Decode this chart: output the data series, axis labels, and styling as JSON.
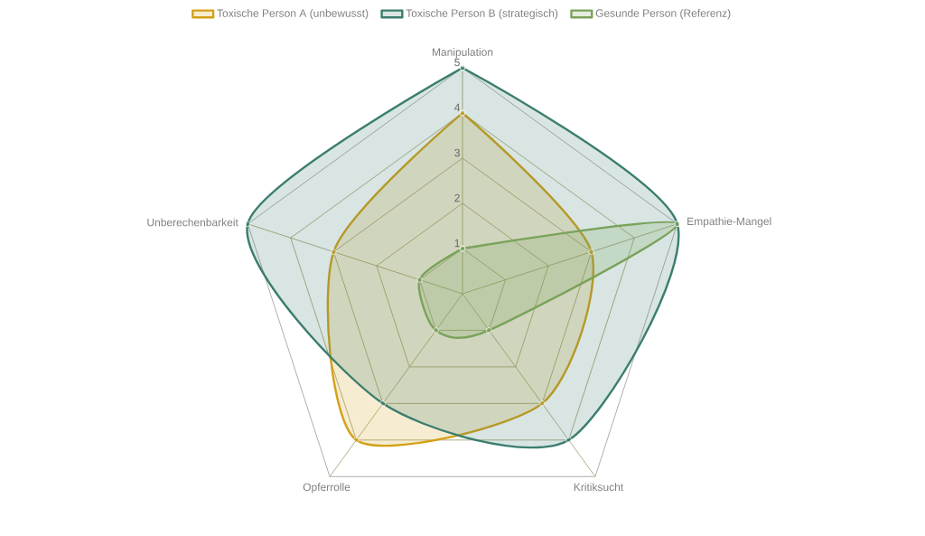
{
  "chart_data": {
    "type": "radar",
    "categories": [
      "Manipulation",
      "Empathie-Mangel",
      "Kritiksucht",
      "Opferrolle",
      "Unberechenbarkeit"
    ],
    "series": [
      {
        "name": "Toxische Person A (unbewusst)",
        "color": "#d4a017",
        "values": [
          4,
          3,
          3,
          4,
          3
        ]
      },
      {
        "name": "Toxische Person B (strategisch)",
        "color": "#3a7d6e",
        "values": [
          5,
          5,
          4,
          3,
          5
        ]
      },
      {
        "name": "Gesunde Person (Referenz)",
        "color": "#7aa35a",
        "values": [
          1,
          5,
          1,
          1,
          1
        ]
      }
    ],
    "ylim": [
      0,
      5
    ],
    "yticks": [
      1,
      2,
      3,
      4,
      5
    ],
    "grid": true,
    "legend": "top",
    "marker": "circle",
    "line_style": "solid"
  }
}
